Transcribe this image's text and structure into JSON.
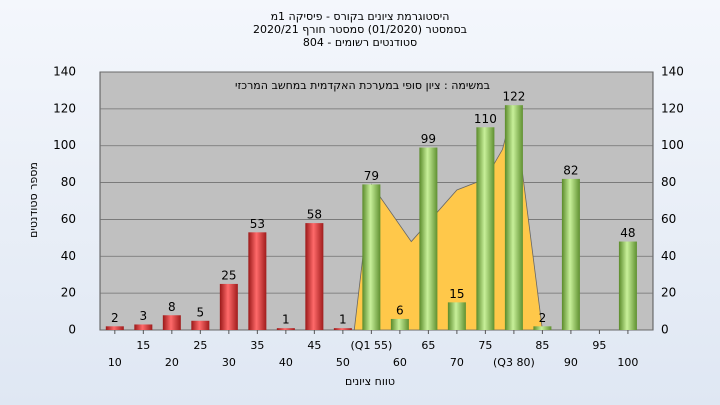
{
  "chart_data": {
    "type": "bar",
    "title": "היסטוגרמת ציונים בקורס - פיסיקה 1מ",
    "subtitle": "בסמסטר  (01/2020)  סמסטר חורף 2020/21",
    "subtitle2": "סטודנטים רשומים - 804",
    "annotation": "במשימה : ציון סופי במערכת האקדמית במחשב המרכזי",
    "x_label": "טווח ציונים",
    "y_label": "מספר סטודנטים",
    "x": [
      10,
      15,
      20,
      25,
      30,
      35,
      40,
      45,
      50,
      55,
      60,
      65,
      70,
      75,
      80,
      85,
      90,
      95,
      100
    ],
    "series": [
      {
        "values": [
          2,
          3,
          8,
          5,
          25,
          53,
          1,
          58,
          1,
          79,
          6,
          99,
          15,
          110,
          122,
          2,
          82,
          null,
          48
        ],
        "colors": [
          "#d83a3a",
          "#8cc35a"
        ],
        "threshold": 55
      }
    ],
    "area": {
      "x": [
        52,
        55,
        62,
        70,
        75,
        78,
        80,
        85
      ],
      "values": [
        0,
        79,
        48,
        76,
        82,
        98,
        122,
        0
      ],
      "color": "#ffc84a"
    },
    "xlim": [
      7.4,
      104.4
    ],
    "xticks": [
      10,
      15,
      20,
      25,
      30,
      35,
      40,
      45,
      50,
      {
        "value": 55,
        "label": "(Q1 55)"
      },
      60,
      65,
      70,
      75,
      {
        "value": 80,
        "label": "(Q3 80)"
      },
      85,
      90,
      95,
      100
    ],
    "ylim": [
      0,
      140
    ],
    "yticks": [
      0,
      20,
      40,
      60,
      80,
      100,
      120,
      140
    ],
    "grid": true
  }
}
